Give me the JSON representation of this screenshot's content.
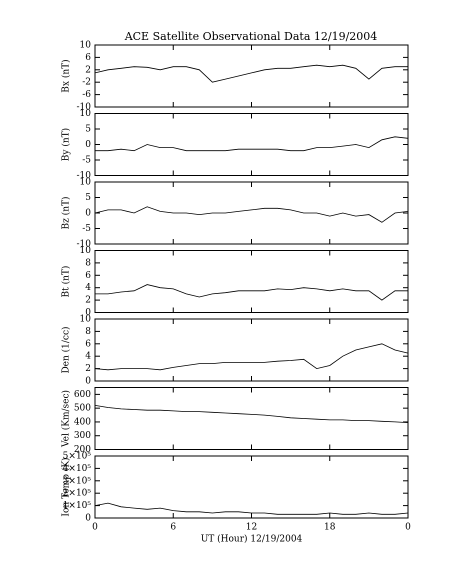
{
  "chart_data": [
    {
      "type": "line",
      "title": "ACE Satellite Observational Data   12/19/2004",
      "ylabel": "Bx (nT)",
      "ylim": [
        -10,
        10
      ],
      "yticks": [
        -10,
        -6,
        -2,
        2,
        6,
        10
      ],
      "xlim": [
        0,
        24
      ],
      "x": [
        0,
        1,
        2,
        3,
        4,
        5,
        6,
        7,
        8,
        9,
        10,
        11,
        12,
        13,
        14,
        15,
        16,
        17,
        18,
        19,
        20,
        21,
        22,
        23,
        24
      ],
      "series": [
        {
          "name": "Bx",
          "color": "#000000",
          "values": [
            1,
            2,
            2.5,
            3,
            2.8,
            2,
            3,
            3,
            2,
            -2,
            -1,
            0,
            1,
            2,
            2.5,
            2.5,
            3,
            3.5,
            3,
            3.5,
            2.5,
            -1,
            2.5,
            3,
            3
          ]
        }
      ]
    },
    {
      "type": "line",
      "ylabel": "By (nT)",
      "ylim": [
        -10,
        10
      ],
      "yticks": [
        -10,
        -5,
        0,
        5,
        10
      ],
      "xlim": [
        0,
        24
      ],
      "x": [
        0,
        1,
        2,
        3,
        4,
        5,
        6,
        7,
        8,
        9,
        10,
        11,
        12,
        13,
        14,
        15,
        16,
        17,
        18,
        19,
        20,
        21,
        22,
        23,
        24
      ],
      "series": [
        {
          "name": "By",
          "color": "#000000",
          "values": [
            -2,
            -2,
            -1.5,
            -2,
            0,
            -1,
            -1,
            -2,
            -2,
            -2,
            -2,
            -1.5,
            -1.5,
            -1.5,
            -1.5,
            -2,
            -2,
            -1,
            -1,
            -0.5,
            0,
            -1,
            1.5,
            2.5,
            2
          ]
        }
      ]
    },
    {
      "type": "line",
      "ylabel": "Bz (nT)",
      "ylim": [
        -10,
        10
      ],
      "yticks": [
        -10,
        -5,
        0,
        5,
        10
      ],
      "xlim": [
        0,
        24
      ],
      "x": [
        0,
        1,
        2,
        3,
        4,
        5,
        6,
        7,
        8,
        9,
        10,
        11,
        12,
        13,
        14,
        15,
        16,
        17,
        18,
        19,
        20,
        21,
        22,
        23,
        24
      ],
      "series": [
        {
          "name": "Bz",
          "color": "#000000",
          "values": [
            0,
            1,
            1,
            0,
            2,
            0.5,
            0,
            0,
            -0.5,
            0,
            0,
            0.5,
            1,
            1.5,
            1.5,
            1,
            0,
            0,
            -1,
            0,
            -1,
            -0.5,
            -3,
            0,
            0.5
          ]
        }
      ]
    },
    {
      "type": "line",
      "ylabel": "Bt (nT)",
      "ylim": [
        0,
        10
      ],
      "yticks": [
        0,
        2,
        4,
        6,
        8,
        10
      ],
      "xlim": [
        0,
        24
      ],
      "x": [
        0,
        1,
        2,
        3,
        4,
        5,
        6,
        7,
        8,
        9,
        10,
        11,
        12,
        13,
        14,
        15,
        16,
        17,
        18,
        19,
        20,
        21,
        22,
        23,
        24
      ],
      "series": [
        {
          "name": "Bt",
          "color": "#000000",
          "values": [
            3,
            3,
            3.3,
            3.5,
            4.5,
            4,
            3.8,
            3,
            2.5,
            3,
            3.2,
            3.5,
            3.5,
            3.5,
            3.8,
            3.7,
            4,
            3.8,
            3.5,
            3.8,
            3.5,
            3.5,
            2,
            3.5,
            3.5
          ]
        }
      ]
    },
    {
      "type": "line",
      "ylabel": "Den (1/cc)",
      "ylim": [
        0,
        10
      ],
      "yticks": [
        0,
        2,
        4,
        6,
        8,
        10
      ],
      "xlim": [
        0,
        24
      ],
      "x": [
        0,
        1,
        2,
        3,
        4,
        5,
        6,
        7,
        8,
        9,
        10,
        11,
        12,
        13,
        14,
        15,
        16,
        17,
        18,
        19,
        20,
        21,
        22,
        23,
        24
      ],
      "series": [
        {
          "name": "Den",
          "color": "#000000",
          "values": [
            2,
            1.8,
            2,
            2,
            2,
            1.8,
            2.2,
            2.5,
            2.8,
            2.8,
            3,
            3,
            3,
            3,
            3.2,
            3.3,
            3.5,
            2,
            2.5,
            4,
            5,
            5.5,
            6,
            5,
            4.5
          ]
        }
      ]
    },
    {
      "type": "line",
      "ylabel": "Vel (Km/sec)",
      "ylim": [
        200,
        650
      ],
      "yticks": [
        200,
        300,
        400,
        500,
        600
      ],
      "xlim": [
        0,
        24
      ],
      "x": [
        0,
        1,
        2,
        3,
        4,
        5,
        6,
        7,
        8,
        9,
        10,
        11,
        12,
        13,
        14,
        15,
        16,
        17,
        18,
        19,
        20,
        21,
        22,
        23,
        24
      ],
      "series": [
        {
          "name": "Vel",
          "color": "#000000",
          "values": [
            520,
            505,
            495,
            490,
            485,
            485,
            480,
            475,
            475,
            470,
            465,
            460,
            455,
            450,
            440,
            430,
            425,
            420,
            415,
            415,
            410,
            410,
            405,
            400,
            395
          ]
        }
      ]
    },
    {
      "type": "line",
      "ylabel": "Ion Temp (K)",
      "ylim": [
        0,
        500000
      ],
      "yticks": [
        0,
        {
          "value": 100000,
          "label": "1×10⁵"
        },
        {
          "value": 200000,
          "label": "2×10⁵"
        },
        {
          "value": 300000,
          "label": "3×10⁵"
        },
        {
          "value": 400000,
          "label": "4×10⁵"
        },
        {
          "value": 500000,
          "label": "5×10⁵"
        }
      ],
      "xlim": [
        0,
        24
      ],
      "xticks": [
        0,
        6,
        12,
        18,
        {
          "value": 24,
          "label": "0"
        }
      ],
      "xlabel": "UT (Hour)  12/19/2004",
      "x": [
        0,
        1,
        2,
        3,
        4,
        5,
        6,
        7,
        8,
        9,
        10,
        11,
        12,
        13,
        14,
        15,
        16,
        17,
        18,
        19,
        20,
        21,
        22,
        23,
        24
      ],
      "series": [
        {
          "name": "Ion Temp",
          "color": "#000000",
          "values": [
            100000,
            120000,
            90000,
            80000,
            70000,
            80000,
            60000,
            50000,
            50000,
            40000,
            50000,
            50000,
            40000,
            40000,
            30000,
            30000,
            30000,
            30000,
            40000,
            30000,
            30000,
            40000,
            30000,
            30000,
            40000
          ]
        }
      ]
    }
  ]
}
